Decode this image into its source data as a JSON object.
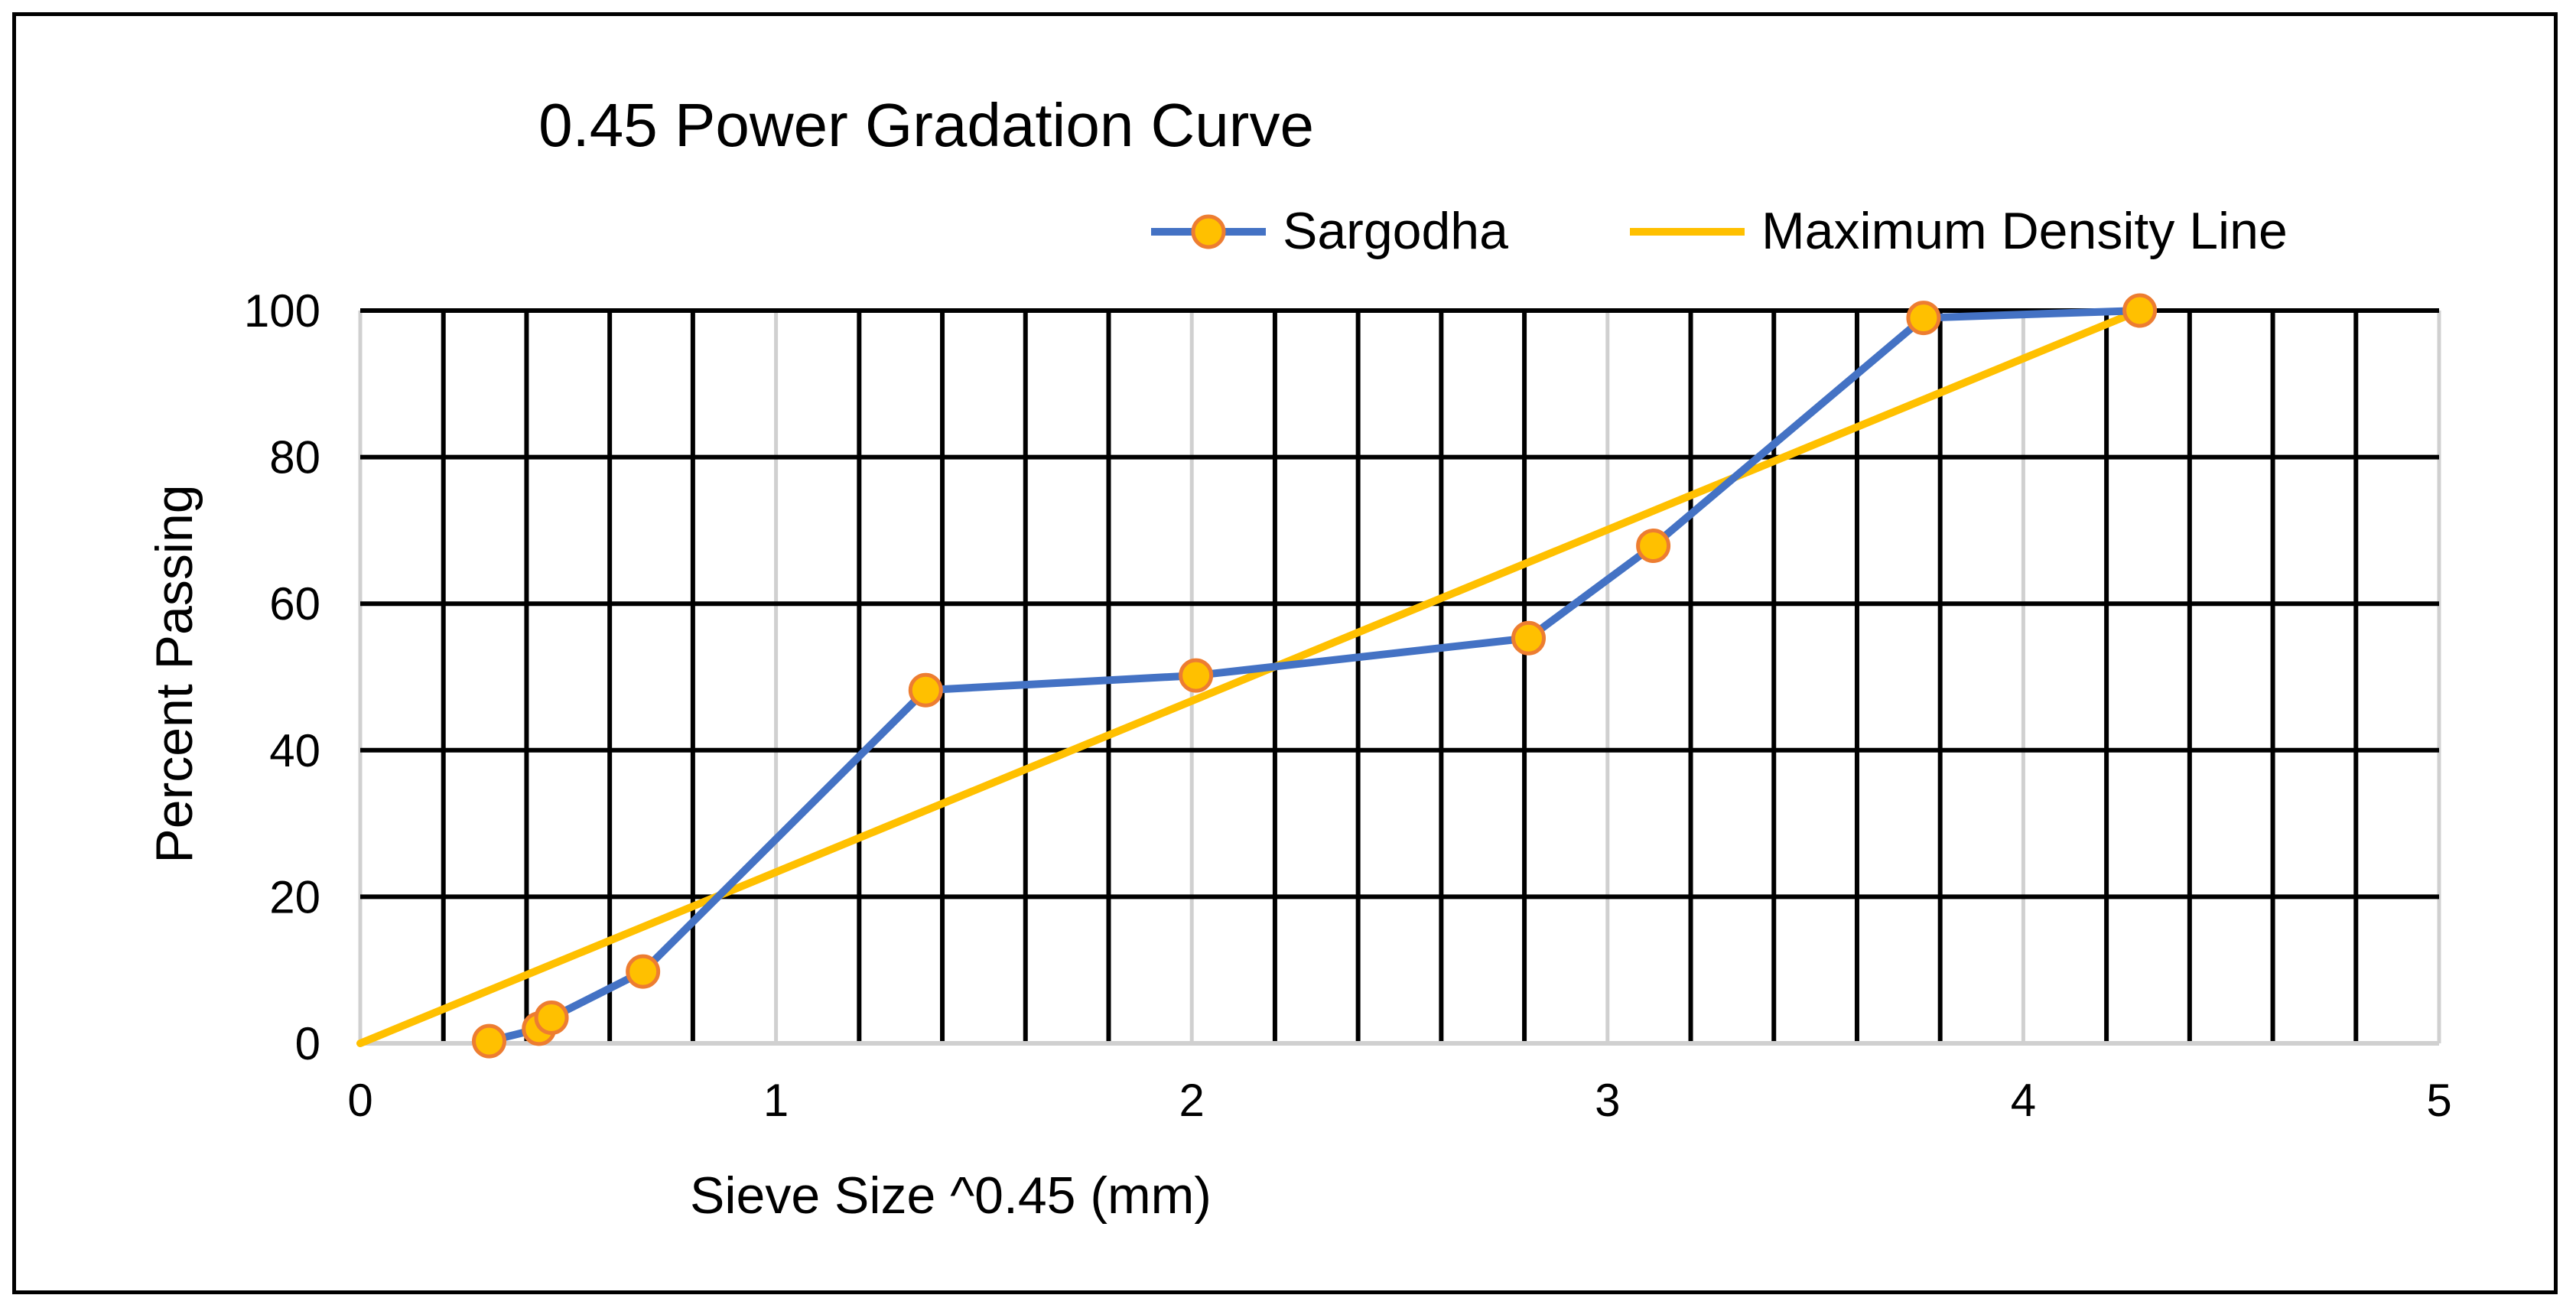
{
  "chart_data": {
    "type": "scatter-line",
    "title": "0.45 Power Gradation Curve",
    "xlabel": "Sieve Size ^0.45 (mm)",
    "ylabel": "Percent Passing",
    "xlim": [
      0,
      5
    ],
    "ylim": [
      0,
      100
    ],
    "x_ticks": [
      "0",
      "1",
      "2",
      "3",
      "4",
      "5"
    ],
    "y_ticks": [
      "0",
      "20",
      "40",
      "60",
      "80",
      "100"
    ],
    "x_minor_step": 0.2,
    "y_major_step": 20,
    "legend_position": "top-right",
    "series": [
      {
        "name": "Sargodha",
        "line_color": "#4472C4",
        "marker_fill": "#FFC000",
        "marker_edge": "#ED7D31",
        "points": [
          {
            "x": 0.31,
            "y": 0.3
          },
          {
            "x": 0.43,
            "y": 2.0
          },
          {
            "x": 0.46,
            "y": 3.5
          },
          {
            "x": 0.68,
            "y": 9.8
          },
          {
            "x": 1.36,
            "y": 48.2
          },
          {
            "x": 2.01,
            "y": 50.2
          },
          {
            "x": 2.81,
            "y": 55.3
          },
          {
            "x": 3.11,
            "y": 67.9
          },
          {
            "x": 3.76,
            "y": 99.0
          },
          {
            "x": 4.28,
            "y": 100.0
          }
        ]
      },
      {
        "name": "Maximum Density Line",
        "line_color": "#FFC000",
        "points": [
          {
            "x": 0,
            "y": 0
          },
          {
            "x": 4.28,
            "y": 100
          }
        ]
      }
    ]
  }
}
